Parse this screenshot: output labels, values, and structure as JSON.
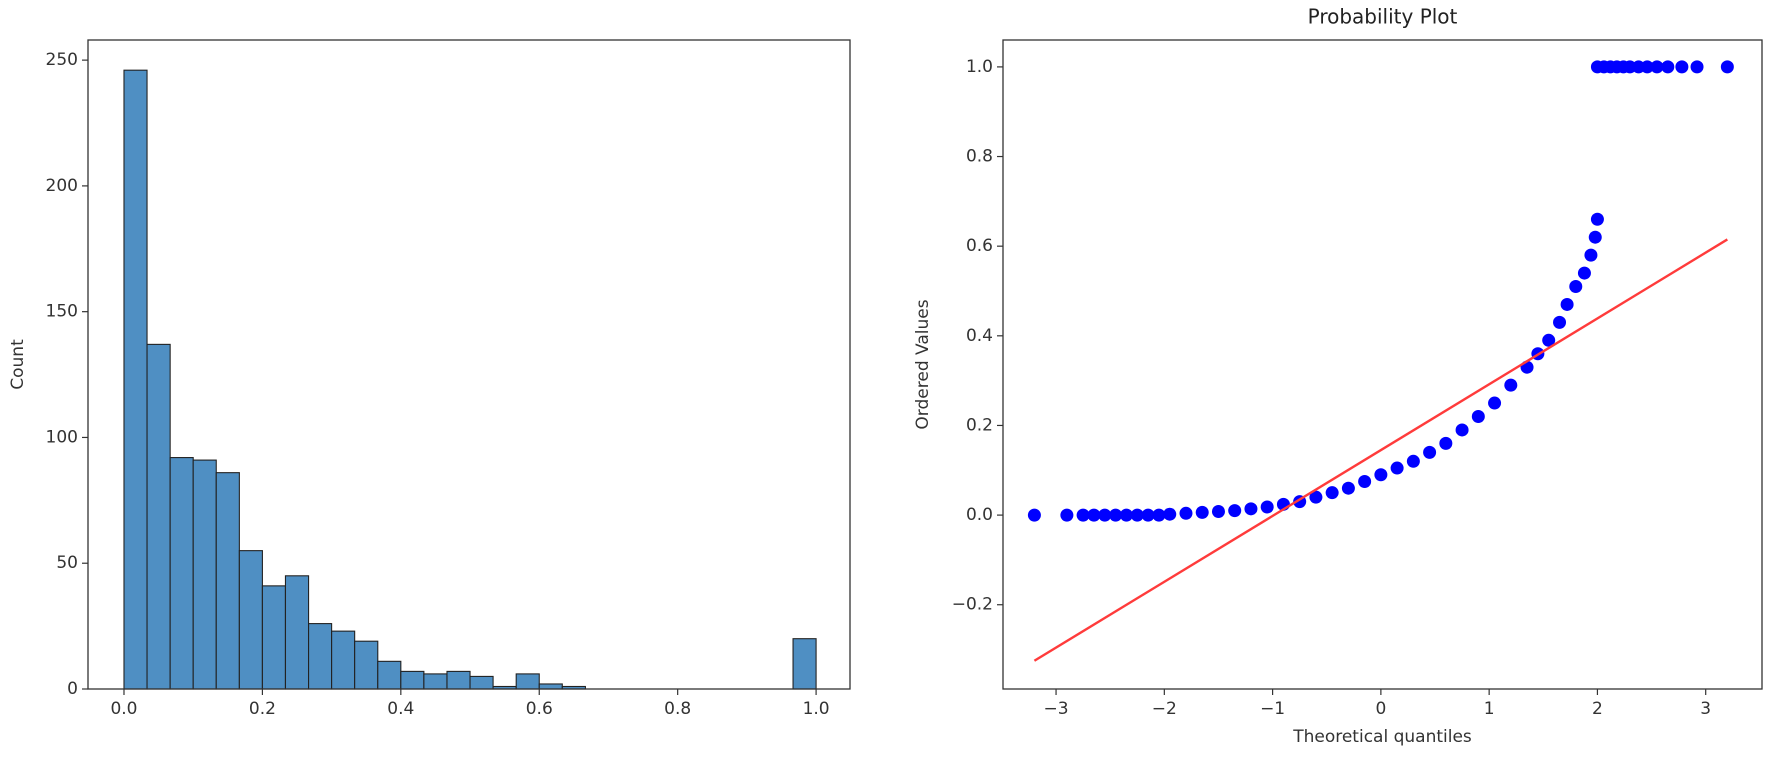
{
  "chart_data": [
    {
      "type": "histogram",
      "ylabel": "Count",
      "bins": [
        0,
        0.0333,
        0.0667,
        0.1,
        0.1333,
        0.1667,
        0.2,
        0.2333,
        0.2667,
        0.3,
        0.3333,
        0.3667,
        0.4,
        0.4333,
        0.4667,
        0.5,
        0.5333,
        0.5667,
        0.6,
        0.6333,
        0.6667,
        0.7,
        0.7333,
        0.7667,
        0.8,
        0.8333,
        0.8667,
        0.9,
        0.9333,
        0.9667,
        1.0
      ],
      "values": [
        246,
        137,
        92,
        91,
        86,
        55,
        41,
        45,
        26,
        23,
        19,
        11,
        7,
        6,
        7,
        5,
        1,
        6,
        2,
        1,
        0,
        0,
        0,
        0,
        0,
        0,
        0,
        0,
        0,
        20
      ],
      "color": "#4f8fc3",
      "xlim": [
        -0.052,
        1.049
      ],
      "ylim": [
        0,
        258
      ],
      "xticks": [
        {
          "value": 0,
          "label": "0.0"
        },
        0.2,
        0.4,
        0.6,
        0.8,
        {
          "value": 1,
          "label": "1.0"
        }
      ],
      "yticks": [
        0,
        50,
        100,
        150,
        200,
        250
      ]
    },
    {
      "type": "scatter",
      "title": "Probability Plot",
      "xlabel": "Theoretical quantiles",
      "ylabel": "Ordered Values",
      "series": [
        {
          "kind": "scatter",
          "color": "#0000ff",
          "x": [
            -3.2,
            -2.9,
            -2.75,
            -2.65,
            -2.55,
            -2.45,
            -2.35,
            -2.25,
            -2.15,
            -2.05,
            -1.95,
            -1.8,
            -1.65,
            -1.5,
            -1.35,
            -1.2,
            -1.05,
            -0.9,
            -0.75,
            -0.6,
            -0.45,
            -0.3,
            -0.15,
            0,
            0.15,
            0.3,
            0.45,
            0.6,
            0.75,
            0.9,
            1.05,
            1.2,
            1.35,
            1.45,
            1.55,
            1.65,
            1.72,
            1.8,
            1.88,
            1.94,
            1.98,
            2.0,
            2.0,
            2.06,
            2.12,
            2.18,
            2.24,
            2.3,
            2.38,
            2.46,
            2.55,
            2.65,
            2.78,
            2.92,
            3.2
          ],
          "values": [
            0,
            0,
            0,
            0,
            0,
            0,
            0,
            0,
            0,
            0,
            0.002,
            0.004,
            0.006,
            0.008,
            0.01,
            0.014,
            0.018,
            0.024,
            0.03,
            0.04,
            0.05,
            0.06,
            0.075,
            0.09,
            0.105,
            0.12,
            0.14,
            0.16,
            0.19,
            0.22,
            0.25,
            0.29,
            0.33,
            0.36,
            0.39,
            0.43,
            0.47,
            0.51,
            0.54,
            0.58,
            0.62,
            0.66,
            1.0,
            1.0,
            1.0,
            1.0,
            1.0,
            1.0,
            1.0,
            1.0,
            1.0,
            1.0,
            1.0,
            1.0,
            1.0
          ]
        },
        {
          "kind": "line",
          "color": "#ff3b3b",
          "x": [
            -3.2,
            3.2
          ],
          "values": [
            -0.325,
            0.615
          ]
        }
      ],
      "xlim": [
        -3.49,
        3.52
      ],
      "ylim": [
        -0.388,
        1.06
      ],
      "xticks": [
        {
          "value": -3,
          "label": "−3"
        },
        {
          "value": -2,
          "label": "−2"
        },
        {
          "value": -1,
          "label": "−1"
        },
        0,
        1,
        2,
        3
      ],
      "yticks": [
        {
          "value": -0.2,
          "label": "−0.2"
        },
        {
          "value": 0,
          "label": "0.0"
        },
        0.2,
        0.4,
        0.6,
        0.8,
        {
          "value": 1,
          "label": "1.0"
        }
      ]
    }
  ]
}
